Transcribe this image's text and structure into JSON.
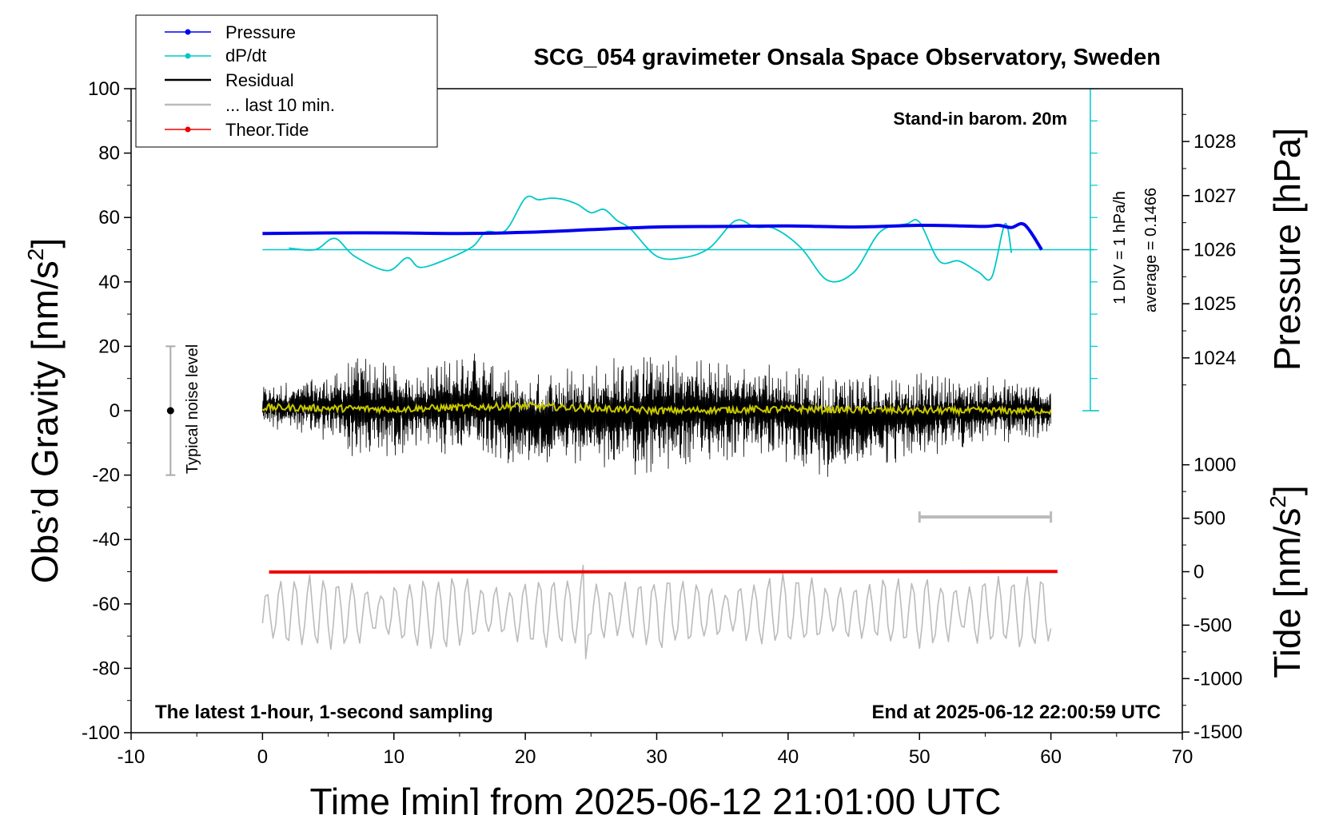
{
  "chart_data": {
    "type": "line",
    "title": "SCG_054 gravimeter Onsala Space Observatory, Sweden",
    "xlabel": "Time [min] from 2025-06-12 21:01:00 UTC",
    "ylabel_left": "Obs’d Gravity [nm/s",
    "ylabel_left_sup": "2",
    "ylabel_left_end": "]",
    "ylabel_pressure": "Pressure [hPa]",
    "ylabel_tide": "Tide [nm/s",
    "ylabel_tide_sup": "2",
    "ylabel_tide_end": "]",
    "xlim": [
      -10,
      70
    ],
    "ylim": [
      -100,
      100
    ],
    "x_ticks": [
      "-10",
      "0",
      "10",
      "20",
      "30",
      "40",
      "50",
      "60",
      "70"
    ],
    "y_ticks": [
      "100",
      "80",
      "60",
      "40",
      "20",
      "0",
      "-20",
      "-40",
      "-60",
      "-80",
      "-100"
    ],
    "pressure_ticks": [
      "1028",
      "1027",
      "1026",
      "1025",
      "1024"
    ],
    "tide_ticks": [
      "1000",
      "500",
      "0",
      "-500",
      "-1000",
      "-1500"
    ],
    "annotations": {
      "barometer": "Stand-in barom. 20m",
      "dpdt_scale": "1 DIV = 1 hPa/h",
      "dpdt_average": "average = 0.1466",
      "noise_label": "Typical noise level",
      "bottom_left": "The latest 1-hour, 1-second sampling",
      "bottom_right": "End at 2025-06-12 22:00:59 UTC"
    },
    "legend": {
      "placement": "top-left",
      "entries": [
        "Pressure",
        "dP/dt",
        "Residual",
        "... last 10 min.",
        "Theor.Tide"
      ]
    },
    "series": [
      {
        "name": "Pressure",
        "color": "#0000ee",
        "axis": "pressure",
        "x": [
          0,
          5,
          10,
          15,
          20,
          25,
          30,
          35,
          40,
          45,
          50,
          53,
          55,
          56,
          57,
          58,
          59.3
        ],
        "values": [
          1026.3,
          1026.31,
          1026.31,
          1026.3,
          1026.32,
          1026.37,
          1026.42,
          1026.43,
          1026.44,
          1026.42,
          1026.45,
          1026.44,
          1026.43,
          1026.45,
          1026.41,
          1026.46,
          1026.0
        ]
      },
      {
        "name": "dP/dt",
        "color": "#00c8c8",
        "axis": "dpdt",
        "x": [
          2,
          4,
          5.5,
          7,
          9.5,
          11,
          12,
          14,
          16,
          17,
          18.5,
          20,
          21,
          22,
          23,
          24,
          25,
          26,
          27,
          28,
          30,
          32,
          34,
          36,
          37.5,
          39,
          41,
          43,
          45,
          47,
          49,
          50,
          51.5,
          53,
          54.5,
          55.5,
          56.5,
          57
        ],
        "values": [
          0.05,
          0.0,
          0.35,
          -0.2,
          -0.65,
          -0.25,
          -0.55,
          -0.3,
          0.1,
          0.55,
          0.6,
          1.6,
          1.55,
          1.6,
          1.55,
          1.4,
          1.15,
          1.25,
          0.9,
          0.65,
          -0.2,
          -0.25,
          0.05,
          0.9,
          0.7,
          0.65,
          0.05,
          -0.95,
          -0.7,
          0.55,
          0.8,
          0.85,
          -0.35,
          -0.35,
          -0.7,
          -0.85,
          0.8,
          -0.1
        ]
      },
      {
        "name": "Residual",
        "color": "#000000",
        "x_range": [
          0,
          60
        ],
        "envelope": [
          {
            "x": 0,
            "min": -5,
            "max": 8
          },
          {
            "x": 6,
            "min": -11,
            "max": 13
          },
          {
            "x": 7,
            "min": -17,
            "max": 19
          },
          {
            "x": 12,
            "min": -13,
            "max": 14
          },
          {
            "x": 16,
            "min": -16,
            "max": 21
          },
          {
            "x": 19.5,
            "min": -17,
            "max": 11
          },
          {
            "x": 29.5,
            "min": -21,
            "max": 20
          },
          {
            "x": 38,
            "min": -15,
            "max": 16
          },
          {
            "x": 43,
            "min": -21,
            "max": 14
          },
          {
            "x": 55,
            "min": -11,
            "max": 11
          },
          {
            "x": 60,
            "min": -9,
            "max": 9
          }
        ]
      },
      {
        "name": "Residual (smoothed)",
        "color": "#c8c800",
        "x": [
          0,
          10,
          20,
          30,
          40,
          50,
          60
        ],
        "values": [
          1,
          0.5,
          1.5,
          0,
          0.5,
          0,
          0
        ]
      },
      {
        "name": "... last 10 min.",
        "color": "#bbbbbb",
        "note": "last 10 minutes of residual, time-stretched",
        "offset": -60,
        "x_range": [
          0,
          60
        ],
        "min": -77,
        "max": -48
      },
      {
        "name": "Theor.Tide",
        "color": "#ee0000",
        "axis": "tide",
        "x": [
          0.5,
          60.5
        ],
        "values": [
          -3,
          2
        ]
      }
    ],
    "reference_lines": {
      "dpdt_zero_level_gravity": 50,
      "last10_marker_x": [
        50,
        60
      ],
      "last10_marker_y": -33,
      "noise_bar": {
        "x": -7,
        "min": -20,
        "max": 20,
        "center": 0
      }
    }
  }
}
